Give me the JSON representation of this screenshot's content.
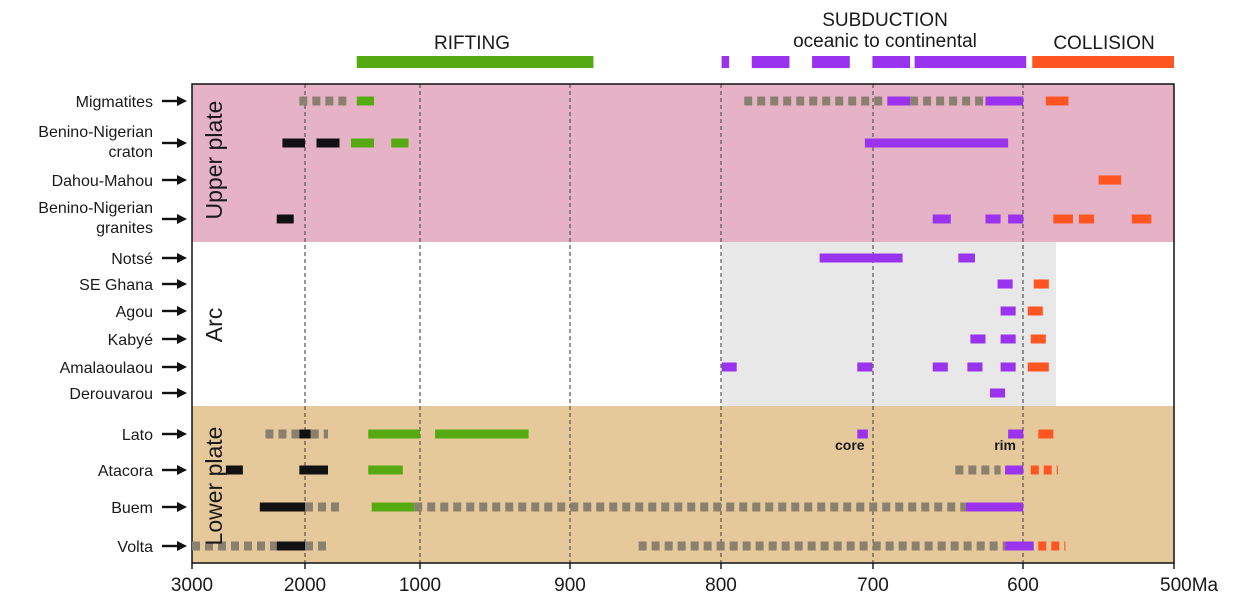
{
  "chart_data": {
    "type": "timeline",
    "xlabel": "",
    "x_unit": "Ma",
    "x_ticks": [
      {
        "value": 3000,
        "label": "3000"
      },
      {
        "value": 2000,
        "label": "2000"
      },
      {
        "value": 1000,
        "label": "1000"
      },
      {
        "value": 900,
        "label": "900"
      },
      {
        "value": 800,
        "label": "800"
      },
      {
        "value": 700,
        "label": "700"
      },
      {
        "value": 600,
        "label": "600"
      },
      {
        "value": 500,
        "label": "500Ma"
      }
    ],
    "axis_scale": "broken: 3000-1000 Ma compressed, 1000-500 Ma linear",
    "grid": "dashed vertical lines at 2000, 1000, 900, 800, 700, 600",
    "colors": {
      "upper_plate_bg": "#e6b3c6",
      "lower_plate_bg": "#e6c99a",
      "arc_shade": "#e8e8e8",
      "rifting": "#55aa11",
      "subduction": "#9933ee",
      "collision": "#ff5522",
      "old_black": "#111111",
      "dashed_gray": "#8a8070"
    },
    "phases": [
      {
        "label": "RIFTING",
        "color": "#55aa11",
        "bars": [
          [
            1550,
            885
          ]
        ]
      },
      {
        "label": "SUBDUCTION",
        "label2": "oceanic to continental",
        "color": "#9933ee",
        "bars": [
          [
            800,
            795
          ],
          [
            780,
            755
          ],
          [
            740,
            715
          ],
          [
            700,
            675
          ],
          [
            672,
            598
          ]
        ]
      },
      {
        "label": "COLLISION",
        "color": "#ff5522",
        "bars": [
          [
            594,
            500
          ]
        ]
      }
    ],
    "groups": [
      {
        "label": "Upper plate",
        "rows": [
          0,
          3
        ]
      },
      {
        "label": "Arc",
        "rows": [
          4,
          9
        ]
      },
      {
        "label": "Lower plate",
        "rows": [
          10,
          13
        ]
      }
    ],
    "rows": [
      {
        "label": "Migmatites",
        "segments": [
          {
            "s": 2050,
            "e": 1600,
            "c": "gray",
            "dash": true
          },
          {
            "s": 1550,
            "e": 1400,
            "c": "green"
          },
          {
            "s": 785,
            "e": 690,
            "c": "gray",
            "dash": true
          },
          {
            "s": 690,
            "e": 675,
            "c": "purple"
          },
          {
            "s": 675,
            "e": 625,
            "c": "gray",
            "dash": true
          },
          {
            "s": 625,
            "e": 600,
            "c": "purple"
          },
          {
            "s": 585,
            "e": 570,
            "c": "orange"
          }
        ]
      },
      {
        "label": "Benino-Nigerian",
        "label2": "craton",
        "segments": [
          {
            "s": 2200,
            "e": 2000,
            "c": "black"
          },
          {
            "s": 1900,
            "e": 1700,
            "c": "black"
          },
          {
            "s": 1600,
            "e": 1400,
            "c": "green"
          },
          {
            "s": 1250,
            "e": 1100,
            "c": "green"
          },
          {
            "s": 705,
            "e": 610,
            "c": "purple"
          }
        ]
      },
      {
        "label": "Dahou-Mahou",
        "segments": [
          {
            "s": 550,
            "e": 535,
            "c": "orange"
          }
        ]
      },
      {
        "label": "Benino-Nigerian",
        "label2": "granites",
        "segments": [
          {
            "s": 2250,
            "e": 2100,
            "c": "black"
          },
          {
            "s": 660,
            "e": 648,
            "c": "purple"
          },
          {
            "s": 625,
            "e": 615,
            "c": "purple"
          },
          {
            "s": 610,
            "e": 600,
            "c": "purple"
          },
          {
            "s": 580,
            "e": 567,
            "c": "orange"
          },
          {
            "s": 563,
            "e": 553,
            "c": "orange"
          },
          {
            "s": 528,
            "e": 515,
            "c": "orange"
          }
        ]
      },
      {
        "label": "Notsé",
        "segments": [
          {
            "s": 735,
            "e": 680,
            "c": "purple"
          },
          {
            "s": 643,
            "e": 632,
            "c": "purple"
          }
        ]
      },
      {
        "label": "SE Ghana",
        "segments": [
          {
            "s": 617,
            "e": 607,
            "c": "purple"
          },
          {
            "s": 593,
            "e": 583,
            "c": "orange"
          }
        ]
      },
      {
        "label": "Agou",
        "segments": [
          {
            "s": 615,
            "e": 605,
            "c": "purple"
          },
          {
            "s": 597,
            "e": 587,
            "c": "orange"
          }
        ]
      },
      {
        "label": "Kabyé",
        "segments": [
          {
            "s": 635,
            "e": 625,
            "c": "purple"
          },
          {
            "s": 615,
            "e": 605,
            "c": "purple"
          },
          {
            "s": 595,
            "e": 585,
            "c": "orange"
          }
        ]
      },
      {
        "label": "Amalaoulaou",
        "segments": [
          {
            "s": 800,
            "e": 790,
            "c": "purple"
          },
          {
            "s": 710,
            "e": 700,
            "c": "purple"
          },
          {
            "s": 660,
            "e": 650,
            "c": "purple"
          },
          {
            "s": 637,
            "e": 627,
            "c": "purple"
          },
          {
            "s": 615,
            "e": 605,
            "c": "purple"
          },
          {
            "s": 597,
            "e": 583,
            "c": "orange"
          }
        ]
      },
      {
        "label": "Derouvarou",
        "segments": [
          {
            "s": 622,
            "e": 612,
            "c": "purple"
          }
        ]
      },
      {
        "label": "Lato",
        "segments": [
          {
            "s": 2350,
            "e": 2050,
            "c": "gray",
            "dash": true
          },
          {
            "s": 2050,
            "e": 1950,
            "c": "black"
          },
          {
            "s": 1950,
            "e": 1800,
            "c": "gray",
            "dash": true
          },
          {
            "s": 1450,
            "e": 1000,
            "c": "green"
          },
          {
            "s": 990,
            "e": 928,
            "c": "green"
          },
          {
            "s": 710,
            "e": 703,
            "c": "purple"
          },
          {
            "s": 610,
            "e": 600,
            "c": "purple"
          },
          {
            "s": 590,
            "e": 580,
            "c": "orange"
          }
        ]
      },
      {
        "label": "Atacora",
        "segments": [
          {
            "s": 2700,
            "e": 2550,
            "c": "black"
          },
          {
            "s": 2050,
            "e": 1800,
            "c": "black"
          },
          {
            "s": 1450,
            "e": 1150,
            "c": "green"
          },
          {
            "s": 645,
            "e": 615,
            "c": "gray",
            "dash": true
          },
          {
            "s": 612,
            "e": 600,
            "c": "purple"
          },
          {
            "s": 595,
            "e": 577,
            "c": "orange",
            "dash": true
          }
        ]
      },
      {
        "label": "Buem",
        "segments": [
          {
            "s": 2400,
            "e": 2000,
            "c": "black"
          },
          {
            "s": 2000,
            "e": 1700,
            "c": "gray",
            "dash": true
          },
          {
            "s": 1420,
            "e": 1050,
            "c": "green"
          },
          {
            "s": 1050,
            "e": 638,
            "c": "gray",
            "dash": true
          },
          {
            "s": 638,
            "e": 600,
            "c": "purple"
          }
        ]
      },
      {
        "label": "Volta",
        "segments": [
          {
            "s": 3000,
            "e": 2250,
            "c": "gray",
            "dash": true
          },
          {
            "s": 2250,
            "e": 2000,
            "c": "black"
          },
          {
            "s": 2000,
            "e": 1800,
            "c": "gray",
            "dash": true
          },
          {
            "s": 855,
            "e": 612,
            "c": "gray",
            "dash": true
          },
          {
            "s": 612,
            "e": 593,
            "c": "purple"
          },
          {
            "s": 590,
            "e": 572,
            "c": "orange",
            "dash": true
          }
        ]
      }
    ],
    "annotations": [
      {
        "text": "core",
        "x": 715,
        "row": 10
      },
      {
        "text": "rim",
        "x": 612,
        "row": 10
      }
    ]
  }
}
